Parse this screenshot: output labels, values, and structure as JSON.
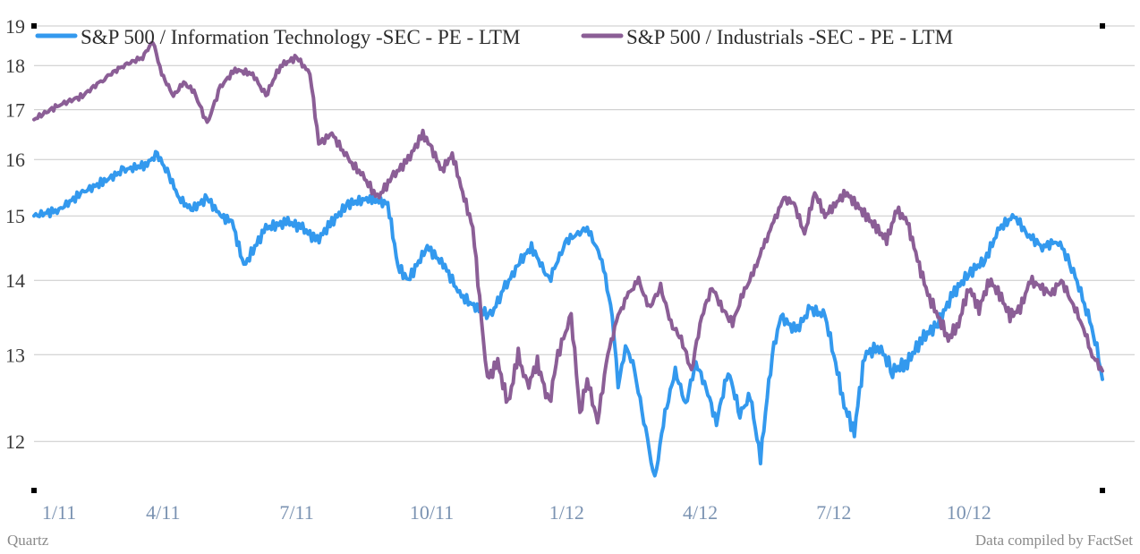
{
  "source_left": "Quartz",
  "source_right": "Data compiled by FactSet",
  "colors": {
    "it": "#3399ee",
    "industrials": "#8b5e96",
    "grid": "#c8c8c8",
    "xtick": "#7b93b2"
  },
  "chart_data": {
    "type": "line",
    "title": "",
    "xlabel": "",
    "ylabel": "",
    "x_axis": "date",
    "x_range": [
      "2011-01-03",
      "2012-12-31"
    ],
    "ylim": [
      11.5,
      19
    ],
    "y_scale": "reciprocal",
    "y_ticks": [
      12,
      13,
      14,
      15,
      16,
      17,
      18,
      19
    ],
    "x_ticks": [
      {
        "date": "2011-01-01",
        "label": "1/11"
      },
      {
        "date": "2011-04-01",
        "label": "4/11"
      },
      {
        "date": "2011-07-01",
        "label": "7/11"
      },
      {
        "date": "2011-10-01",
        "label": "10/11"
      },
      {
        "date": "2012-01-01",
        "label": "1/12"
      },
      {
        "date": "2012-04-01",
        "label": "4/12"
      },
      {
        "date": "2012-07-01",
        "label": "7/12"
      },
      {
        "date": "2012-10-01",
        "label": "10/12"
      }
    ],
    "grid": "horizontal",
    "legend_position": "top",
    "series": [
      {
        "name": "S&P 500 / Information Technology -SEC - PE - LTM",
        "color": "#3399ee",
        "points": [
          [
            "2011-01-03",
            15.0
          ],
          [
            "2011-01-20",
            15.1
          ],
          [
            "2011-02-05",
            15.4
          ],
          [
            "2011-02-20",
            15.6
          ],
          [
            "2011-03-05",
            15.8
          ],
          [
            "2011-03-20",
            15.9
          ],
          [
            "2011-03-28",
            16.1
          ],
          [
            "2011-04-05",
            15.7
          ],
          [
            "2011-04-12",
            15.3
          ],
          [
            "2011-04-20",
            15.1
          ],
          [
            "2011-05-01",
            15.3
          ],
          [
            "2011-05-10",
            15.0
          ],
          [
            "2011-05-18",
            14.9
          ],
          [
            "2011-05-26",
            14.2
          ],
          [
            "2011-06-10",
            14.8
          ],
          [
            "2011-06-25",
            14.9
          ],
          [
            "2011-07-05",
            14.8
          ],
          [
            "2011-07-15",
            14.6
          ],
          [
            "2011-07-25",
            14.9
          ],
          [
            "2011-08-05",
            15.2
          ],
          [
            "2011-08-20",
            15.3
          ],
          [
            "2011-09-01",
            15.2
          ],
          [
            "2011-09-08",
            14.2
          ],
          [
            "2011-09-15",
            14.0
          ],
          [
            "2011-09-28",
            14.5
          ],
          [
            "2011-10-10",
            14.2
          ],
          [
            "2011-10-20",
            13.8
          ],
          [
            "2011-11-01",
            13.6
          ],
          [
            "2011-11-10",
            13.5
          ],
          [
            "2011-11-20",
            13.9
          ],
          [
            "2011-12-01",
            14.3
          ],
          [
            "2011-12-08",
            14.5
          ],
          [
            "2011-12-20",
            14.0
          ],
          [
            "2012-01-01",
            14.6
          ],
          [
            "2012-01-15",
            14.8
          ],
          [
            "2012-01-25",
            14.3
          ],
          [
            "2012-02-01",
            13.5
          ],
          [
            "2012-02-05",
            12.6
          ],
          [
            "2012-02-10",
            13.1
          ],
          [
            "2012-02-15",
            12.9
          ],
          [
            "2012-02-25",
            12.0
          ],
          [
            "2012-03-01",
            11.6
          ],
          [
            "2012-03-08",
            12.3
          ],
          [
            "2012-03-15",
            12.8
          ],
          [
            "2012-03-22",
            12.4
          ],
          [
            "2012-03-29",
            12.9
          ],
          [
            "2012-04-05",
            12.6
          ],
          [
            "2012-04-12",
            12.2
          ],
          [
            "2012-04-20",
            12.8
          ],
          [
            "2012-04-28",
            12.3
          ],
          [
            "2012-05-05",
            12.5
          ],
          [
            "2012-05-12",
            11.8
          ],
          [
            "2012-05-20",
            13.0
          ],
          [
            "2012-05-26",
            13.5
          ],
          [
            "2012-06-05",
            13.3
          ],
          [
            "2012-06-15",
            13.6
          ],
          [
            "2012-06-25",
            13.5
          ],
          [
            "2012-07-01",
            13.0
          ],
          [
            "2012-07-08",
            12.4
          ],
          [
            "2012-07-15",
            12.1
          ],
          [
            "2012-07-22",
            13.0
          ],
          [
            "2012-08-01",
            13.1
          ],
          [
            "2012-08-10",
            12.8
          ],
          [
            "2012-08-20",
            12.9
          ],
          [
            "2012-08-30",
            13.2
          ],
          [
            "2012-09-10",
            13.4
          ],
          [
            "2012-09-20",
            13.8
          ],
          [
            "2012-10-01",
            14.1
          ],
          [
            "2012-10-12",
            14.3
          ],
          [
            "2012-10-22",
            14.8
          ],
          [
            "2012-11-01",
            15.0
          ],
          [
            "2012-11-10",
            14.7
          ],
          [
            "2012-11-20",
            14.5
          ],
          [
            "2012-12-01",
            14.6
          ],
          [
            "2012-12-10",
            14.2
          ],
          [
            "2012-12-20",
            13.6
          ],
          [
            "2012-12-26",
            13.2
          ],
          [
            "2012-12-31",
            12.7
          ]
        ]
      },
      {
        "name": "S&P 500 / Industrials -SEC - PE - LTM",
        "color": "#8b5e96",
        "points": [
          [
            "2011-01-03",
            16.8
          ],
          [
            "2011-01-20",
            17.1
          ],
          [
            "2011-02-05",
            17.3
          ],
          [
            "2011-02-20",
            17.7
          ],
          [
            "2011-03-05",
            18.0
          ],
          [
            "2011-03-18",
            18.2
          ],
          [
            "2011-03-25",
            18.6
          ],
          [
            "2011-03-31",
            17.8
          ],
          [
            "2011-04-08",
            17.3
          ],
          [
            "2011-04-15",
            17.6
          ],
          [
            "2011-04-22",
            17.4
          ],
          [
            "2011-05-01",
            16.7
          ],
          [
            "2011-05-10",
            17.5
          ],
          [
            "2011-05-20",
            17.9
          ],
          [
            "2011-06-01",
            17.8
          ],
          [
            "2011-06-10",
            17.3
          ],
          [
            "2011-06-20",
            18.0
          ],
          [
            "2011-07-01",
            18.2
          ],
          [
            "2011-07-10",
            17.8
          ],
          [
            "2011-07-16",
            16.3
          ],
          [
            "2011-07-25",
            16.5
          ],
          [
            "2011-08-05",
            16.0
          ],
          [
            "2011-08-15",
            15.7
          ],
          [
            "2011-08-25",
            15.3
          ],
          [
            "2011-09-05",
            15.7
          ],
          [
            "2011-09-15",
            16.0
          ],
          [
            "2011-09-25",
            16.5
          ],
          [
            "2011-10-01",
            16.2
          ],
          [
            "2011-10-08",
            15.8
          ],
          [
            "2011-10-15",
            16.1
          ],
          [
            "2011-10-22",
            15.4
          ],
          [
            "2011-10-29",
            14.8
          ],
          [
            "2011-11-05",
            13.2
          ],
          [
            "2011-11-08",
            12.7
          ],
          [
            "2011-11-15",
            12.9
          ],
          [
            "2011-11-22",
            12.4
          ],
          [
            "2011-11-29",
            13.0
          ],
          [
            "2011-12-05",
            12.6
          ],
          [
            "2011-12-12",
            12.9
          ],
          [
            "2011-12-20",
            12.4
          ],
          [
            "2011-12-26",
            13.0
          ],
          [
            "2012-01-04",
            13.5
          ],
          [
            "2012-01-10",
            12.3
          ],
          [
            "2012-01-15",
            12.7
          ],
          [
            "2012-01-22",
            12.2
          ],
          [
            "2012-01-29",
            13.0
          ],
          [
            "2012-02-05",
            13.5
          ],
          [
            "2012-02-12",
            13.8
          ],
          [
            "2012-02-19",
            14.0
          ],
          [
            "2012-02-26",
            13.6
          ],
          [
            "2012-03-05",
            13.9
          ],
          [
            "2012-03-12",
            13.4
          ],
          [
            "2012-03-19",
            13.2
          ],
          [
            "2012-03-26",
            12.8
          ],
          [
            "2012-04-02",
            13.5
          ],
          [
            "2012-04-09",
            13.9
          ],
          [
            "2012-04-16",
            13.6
          ],
          [
            "2012-04-23",
            13.4
          ],
          [
            "2012-04-30",
            13.8
          ],
          [
            "2012-05-07",
            14.1
          ],
          [
            "2012-05-14",
            14.5
          ],
          [
            "2012-05-21",
            14.9
          ],
          [
            "2012-05-28",
            15.3
          ],
          [
            "2012-06-04",
            15.2
          ],
          [
            "2012-06-11",
            14.7
          ],
          [
            "2012-06-18",
            15.4
          ],
          [
            "2012-06-25",
            15.0
          ],
          [
            "2012-07-02",
            15.2
          ],
          [
            "2012-07-09",
            15.4
          ],
          [
            "2012-07-16",
            15.2
          ],
          [
            "2012-07-23",
            15.0
          ],
          [
            "2012-07-30",
            14.8
          ],
          [
            "2012-08-06",
            14.6
          ],
          [
            "2012-08-13",
            15.1
          ],
          [
            "2012-08-20",
            14.9
          ],
          [
            "2012-08-27",
            14.3
          ],
          [
            "2012-09-03",
            13.8
          ],
          [
            "2012-09-10",
            13.5
          ],
          [
            "2012-09-17",
            13.2
          ],
          [
            "2012-09-24",
            13.4
          ],
          [
            "2012-10-01",
            13.9
          ],
          [
            "2012-10-08",
            13.6
          ],
          [
            "2012-10-15",
            14.0
          ],
          [
            "2012-10-22",
            13.8
          ],
          [
            "2012-10-29",
            13.5
          ],
          [
            "2012-11-05",
            13.6
          ],
          [
            "2012-11-12",
            14.0
          ],
          [
            "2012-11-19",
            13.9
          ],
          [
            "2012-11-26",
            13.8
          ],
          [
            "2012-12-03",
            14.0
          ],
          [
            "2012-12-10",
            13.7
          ],
          [
            "2012-12-17",
            13.4
          ],
          [
            "2012-12-24",
            13.0
          ],
          [
            "2012-12-31",
            12.8
          ]
        ]
      }
    ]
  }
}
